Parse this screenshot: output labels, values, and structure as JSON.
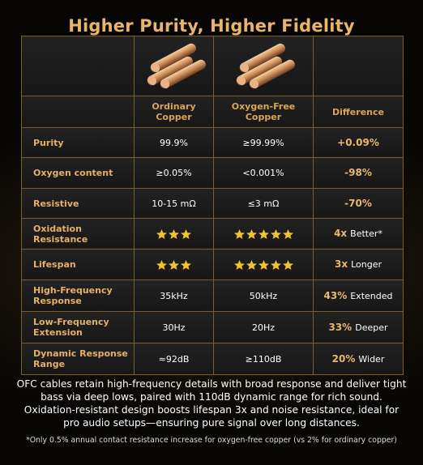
{
  "title": "Higher Purity, Higher Fidelity",
  "table": {
    "columns": [
      "Ordinary Copper",
      "Oxygen-Free Copper",
      "Difference"
    ],
    "rows": [
      {
        "label": "Purity",
        "ordinary": "99.9%",
        "ofc": "≥99.99%",
        "difference": "+0.09%"
      },
      {
        "label": "Oxygen content",
        "ordinary": "≥0.05%",
        "ofc": "<0.001%",
        "difference": "-98%"
      },
      {
        "label": "Resistive",
        "ordinary": "10-15 mΩ",
        "ofc": "≤3 mΩ",
        "difference": "-70%"
      },
      {
        "label": "Oxidation Resistance",
        "ordinary": {
          "rating": 3
        },
        "ofc": {
          "rating": 5
        },
        "difference": {
          "em": "4x",
          "text": "Better*"
        }
      },
      {
        "label": "Lifespan",
        "ordinary": {
          "rating": 3
        },
        "ofc": {
          "rating": 5
        },
        "difference": {
          "em": "3x",
          "text": "Longer"
        }
      },
      {
        "label": "High-Frequency Response",
        "ordinary": "35kHz",
        "ofc": "50kHz",
        "difference": {
          "em": "43%",
          "text": "Extended"
        }
      },
      {
        "label": "Low-Frequency Extension",
        "ordinary": "30Hz",
        "ofc": "20Hz",
        "difference": {
          "em": "33%",
          "text": "Deeper"
        }
      },
      {
        "label": "Dynamic Response Range",
        "ordinary": "≈92dB",
        "ofc": "≥110dB",
        "difference": {
          "em": "20%",
          "text": "Wider"
        }
      }
    ]
  },
  "description": "OFC cables retain high-frequency details with broad response and deliver tight bass via deep lows, paired with 110dB dynamic range for rich sound. Oxidation-resistant design boosts lifespan 3x and noise resistance, ideal for pro audio setups—ensuring pure signal over long distances.",
  "footnote": "*Only 0.5% annual contact resistance increase for oxygen-free copper (vs 2% for ordinary copper)"
}
